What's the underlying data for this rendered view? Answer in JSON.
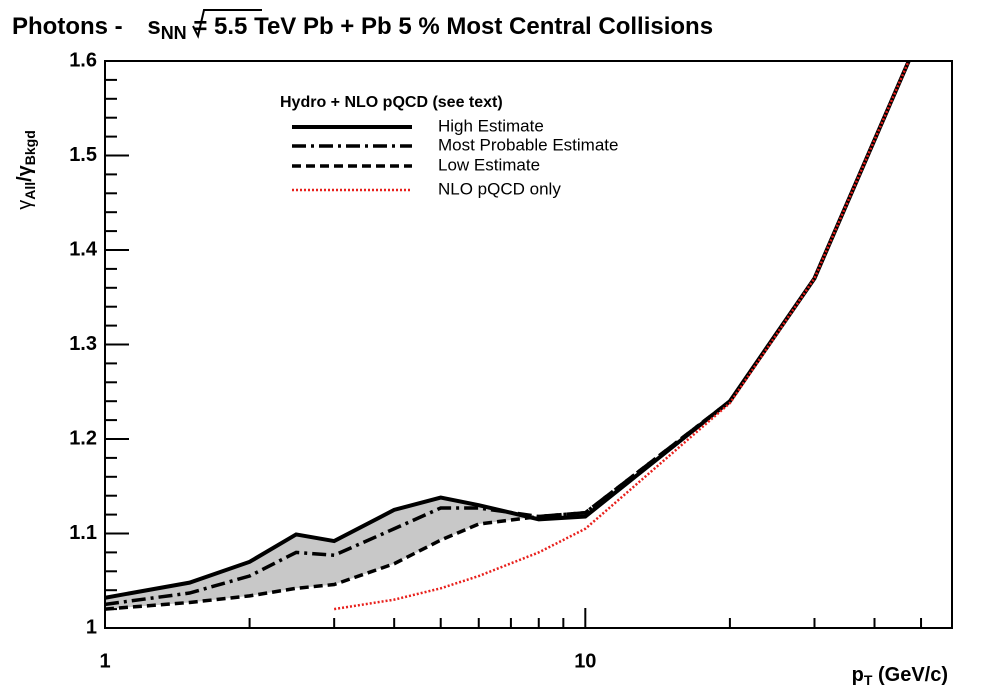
{
  "chart_data": {
    "type": "line",
    "title": {
      "prefix": "Photons - ",
      "root": "s",
      "sub": "NN",
      "suffix": " = 5.5 TeV Pb + Pb 5 % Most Central Collisions"
    },
    "ylabel": {
      "main1": "γ",
      "sub1": "All",
      "slash": "/γ",
      "sub2": "Bkgd"
    },
    "xlabel": {
      "main": "p",
      "sub": "T",
      "suffix": " (GeV/c)"
    },
    "legend_title": "Hydro + NLO pQCD (see text)",
    "xlog": true,
    "xlim": [
      1,
      58
    ],
    "ylim": [
      1,
      1.6
    ],
    "xticks": [
      1,
      10
    ],
    "xticks_minor": [
      2,
      3,
      4,
      5,
      6,
      7,
      8,
      9,
      20,
      30,
      40,
      50
    ],
    "yticks": [
      1,
      1.1,
      1.2,
      1.3,
      1.4,
      1.5,
      1.6
    ],
    "yticks_minor": [
      1.02,
      1.04,
      1.06,
      1.08,
      1.12,
      1.14,
      1.16,
      1.18,
      1.22,
      1.24,
      1.26,
      1.28,
      1.32,
      1.34,
      1.36,
      1.38,
      1.42,
      1.44,
      1.46,
      1.48,
      1.52,
      1.54,
      1.56,
      1.58
    ],
    "band_color": "#c8c8c8",
    "x": [
      1,
      1.5,
      2,
      2.5,
      3,
      4,
      5,
      6,
      8,
      10,
      20,
      30,
      50
    ],
    "series": [
      {
        "name": "High Estimate",
        "color": "#000000",
        "style": "solid",
        "values": [
          1.032,
          1.048,
          1.07,
          1.099,
          1.092,
          1.125,
          1.138,
          1.13,
          1.115,
          1.118,
          1.24,
          1.37,
          1.63
        ]
      },
      {
        "name": "Most Probable Estimate",
        "color": "#000000",
        "style": "dashdot",
        "values": [
          1.025,
          1.037,
          1.055,
          1.08,
          1.077,
          1.105,
          1.127,
          1.127,
          1.118,
          1.122,
          1.24,
          1.37,
          1.63
        ]
      },
      {
        "name": "Low  Estimate",
        "color": "#000000",
        "style": "dashed",
        "values": [
          1.02,
          1.027,
          1.034,
          1.042,
          1.046,
          1.068,
          1.093,
          1.11,
          1.118,
          1.122,
          1.24,
          1.37,
          1.63
        ]
      },
      {
        "name": "NLO pQCD only",
        "color": "#e8201c",
        "style": "dotted",
        "values": [
          null,
          null,
          null,
          null,
          1.02,
          1.03,
          1.042,
          1.055,
          1.08,
          1.105,
          1.238,
          1.37,
          1.63
        ]
      }
    ]
  }
}
